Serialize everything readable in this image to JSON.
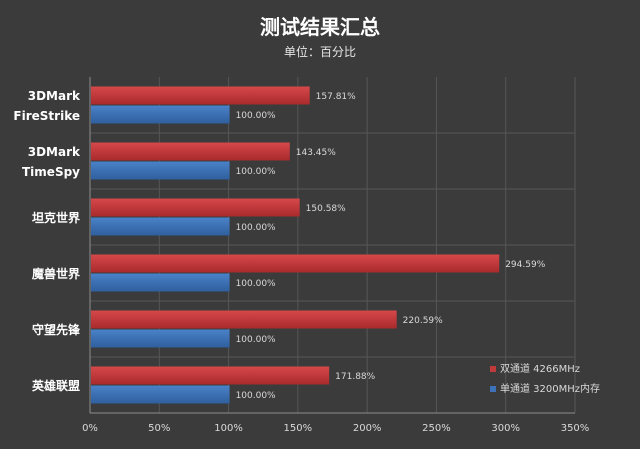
{
  "chart_data": {
    "type": "bar",
    "orientation": "horizontal",
    "title": "测试结果汇总",
    "subtitle": "单位：百分比",
    "categories": [
      [
        "3DMark",
        "FireStrike"
      ],
      [
        "3DMark",
        "TimeSpy"
      ],
      [
        "坦克世界"
      ],
      [
        "魔兽世界"
      ],
      [
        "守望先锋"
      ],
      [
        "英雄联盟"
      ]
    ],
    "series": [
      {
        "name": "双通道 4266MHz",
        "color": "#c0393b",
        "values": [
          157.81,
          143.45,
          150.58,
          294.59,
          220.59,
          171.88
        ],
        "labels": [
          "157.81%",
          "143.45%",
          "150.58%",
          "294.59%",
          "220.59%",
          "171.88%"
        ]
      },
      {
        "name": "单通道 3200MHz内存",
        "color": "#3d72b8",
        "values": [
          100,
          100,
          100,
          100,
          100,
          100
        ],
        "labels": [
          "100.00%",
          "100.00%",
          "100.00%",
          "100.00%",
          "100.00%",
          "100.00%"
        ]
      }
    ],
    "xlim": [
      0,
      350
    ],
    "xticks": [
      "0%",
      "50%",
      "100%",
      "150%",
      "200%",
      "250%",
      "300%",
      "350%"
    ],
    "grid": "vertical",
    "legend": "bottom-right"
  }
}
